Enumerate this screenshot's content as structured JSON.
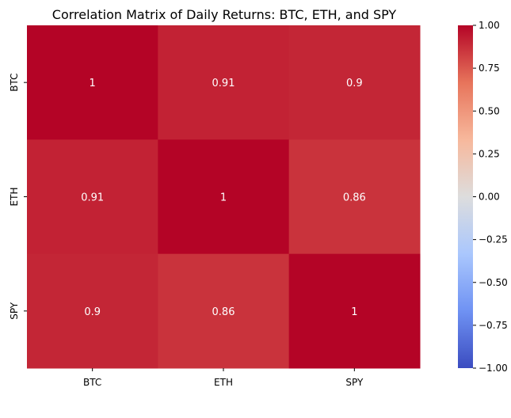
{
  "chart_data": {
    "type": "heatmap",
    "title": "Correlation Matrix of Daily Returns: BTC, ETH, and SPY",
    "xlabel": "",
    "ylabel": "",
    "x_categories": [
      "BTC",
      "ETH",
      "SPY"
    ],
    "y_categories": [
      "BTC",
      "ETH",
      "SPY"
    ],
    "values": [
      [
        1,
        0.91,
        0.9
      ],
      [
        0.91,
        1,
        0.86
      ],
      [
        0.9,
        0.86,
        1
      ]
    ],
    "annotations": [
      [
        "1",
        "0.91",
        "0.9"
      ],
      [
        "0.91",
        "1",
        "0.86"
      ],
      [
        "0.9",
        "0.86",
        "1"
      ]
    ],
    "colormap": "coolwarm",
    "colormap_stops": [
      "#3b4cc0",
      "#6f92f3",
      "#aac7fd",
      "#dddddd",
      "#f7b89c",
      "#e7745b",
      "#b40426"
    ],
    "vmin": -1.0,
    "vmax": 1.0,
    "colorbar_ticks": [
      "1.00",
      "0.75",
      "0.50",
      "0.25",
      "0.00",
      "−0.25",
      "−0.50",
      "−0.75",
      "−1.00"
    ],
    "colorbar_tick_values": [
      1.0,
      0.75,
      0.5,
      0.25,
      0.0,
      -0.25,
      -0.5,
      -0.75,
      -1.0
    ],
    "colorbar_position": "right",
    "grid": false,
    "annotation_color": "#ffffff"
  }
}
